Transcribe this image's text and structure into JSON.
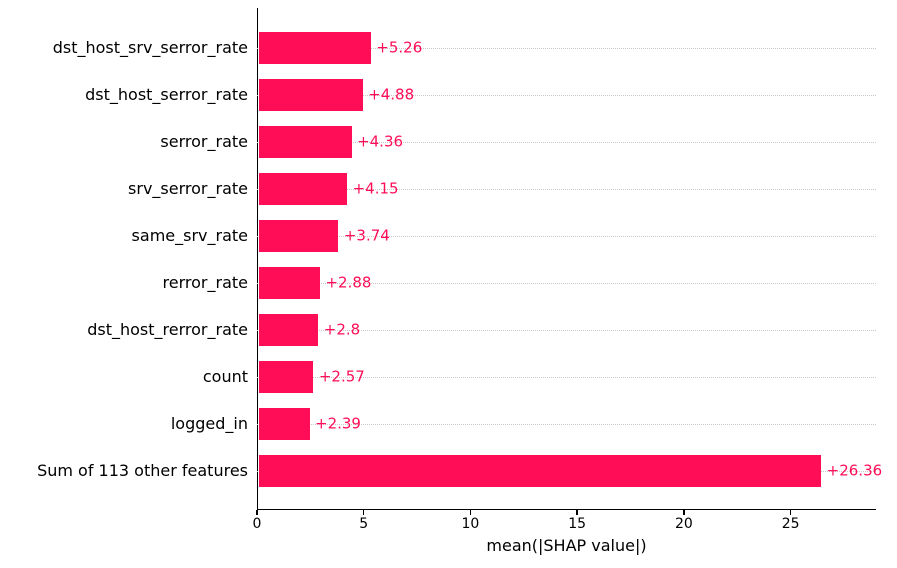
{
  "chart_data": {
    "type": "bar",
    "orientation": "horizontal",
    "title": "",
    "xlabel": "mean(|SHAP value|)",
    "ylabel": "",
    "categories": [
      "dst_host_srv_serror_rate",
      "dst_host_serror_rate",
      "serror_rate",
      "srv_serror_rate",
      "same_srv_rate",
      "rerror_rate",
      "dst_host_rerror_rate",
      "count",
      "logged_in",
      "Sum of 113 other features"
    ],
    "values": [
      5.26,
      4.88,
      4.36,
      4.15,
      3.74,
      2.88,
      2.8,
      2.57,
      2.39,
      26.36
    ],
    "value_labels": [
      "+5.26",
      "+4.88",
      "+4.36",
      "+4.15",
      "+3.74",
      "+2.88",
      "+2.8",
      "+2.57",
      "+2.39",
      "+26.36"
    ],
    "x_ticks": [
      0,
      5,
      10,
      15,
      20,
      25
    ],
    "x_tick_labels": [
      "0",
      "5",
      "10",
      "15",
      "20",
      "25"
    ],
    "xlim": [
      0,
      29
    ],
    "grid": "horizontal dotted lines at each bar row",
    "legend": null,
    "bar_color": "#ff0d57",
    "value_label_color": "#ff0d57",
    "axis_color": "#000000",
    "gridline_color": "#c8c8c8"
  }
}
